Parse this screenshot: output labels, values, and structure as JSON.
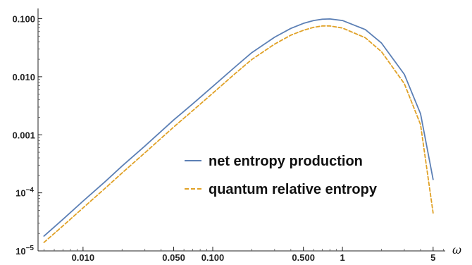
{
  "chart_data": {
    "type": "line",
    "xscale": "log",
    "yscale": "log",
    "xlabel": "ω",
    "ylabel": "",
    "title": "",
    "xlim": [
      0.0045,
      6.2
    ],
    "ylim": [
      1e-05,
      0.15
    ],
    "x_ticks": [
      {
        "value": 0.01,
        "label": "0.010"
      },
      {
        "value": 0.05,
        "label": "0.050"
      },
      {
        "value": 0.1,
        "label": "0.100"
      },
      {
        "value": 0.5,
        "label": "0.500"
      },
      {
        "value": 1,
        "label": "1"
      },
      {
        "value": 5,
        "label": "5"
      }
    ],
    "y_ticks": [
      {
        "value": 0.1,
        "label": "0.100"
      },
      {
        "value": 0.01,
        "label": "0.010"
      },
      {
        "value": 0.001,
        "label": "0.001"
      },
      {
        "value": 0.0001,
        "label_base": "10",
        "label_exp": "−4"
      },
      {
        "value": 1e-05,
        "label_base": "10",
        "label_exp": "−5"
      }
    ],
    "grid": false,
    "legend_position": "center-right",
    "series": [
      {
        "name": "net entropy production",
        "color": "#5b7fb5",
        "dash": "solid",
        "points": [
          [
            0.005,
            1.8e-05
          ],
          [
            0.007,
            3.5e-05
          ],
          [
            0.01,
            7.2e-05
          ],
          [
            0.015,
            0.00016
          ],
          [
            0.02,
            0.00029
          ],
          [
            0.03,
            0.00064
          ],
          [
            0.05,
            0.0018
          ],
          [
            0.07,
            0.0034
          ],
          [
            0.1,
            0.0068
          ],
          [
            0.15,
            0.015
          ],
          [
            0.2,
            0.026
          ],
          [
            0.3,
            0.048
          ],
          [
            0.4,
            0.068
          ],
          [
            0.5,
            0.083
          ],
          [
            0.6,
            0.093
          ],
          [
            0.7,
            0.098
          ],
          [
            0.8,
            0.099
          ],
          [
            1.0,
            0.093
          ],
          [
            1.5,
            0.065
          ],
          [
            2.0,
            0.038
          ],
          [
            3.0,
            0.011
          ],
          [
            4.0,
            0.0023
          ],
          [
            5.0,
            0.00017
          ]
        ]
      },
      {
        "name": "quantum relative entropy",
        "color": "#e0a126",
        "dash": "dashed",
        "points": [
          [
            0.005,
            1.4e-05
          ],
          [
            0.007,
            2.7e-05
          ],
          [
            0.01,
            5.5e-05
          ],
          [
            0.015,
            0.000123
          ],
          [
            0.02,
            0.00022
          ],
          [
            0.03,
            0.00049
          ],
          [
            0.05,
            0.00136
          ],
          [
            0.07,
            0.0026
          ],
          [
            0.1,
            0.0052
          ],
          [
            0.15,
            0.0115
          ],
          [
            0.2,
            0.0198
          ],
          [
            0.3,
            0.0365
          ],
          [
            0.4,
            0.052
          ],
          [
            0.5,
            0.063
          ],
          [
            0.6,
            0.071
          ],
          [
            0.7,
            0.075
          ],
          [
            0.8,
            0.075
          ],
          [
            1.0,
            0.069
          ],
          [
            1.5,
            0.047
          ],
          [
            2.0,
            0.027
          ],
          [
            3.0,
            0.0076
          ],
          [
            4.0,
            0.0015
          ],
          [
            5.0,
            4.5e-05
          ]
        ]
      }
    ]
  }
}
